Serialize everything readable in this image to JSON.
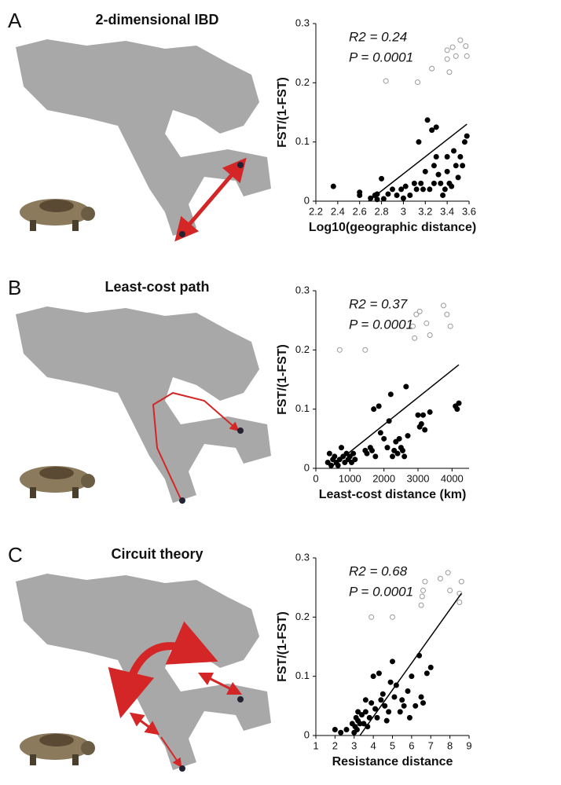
{
  "chart_data": [
    {
      "type": "scatter",
      "panel": "A",
      "title": "2-dimensional IBD",
      "xlabel": "Log10(geographic distance)",
      "ylabel": "FST/(1-FST)",
      "annotations": [
        "R2 = 0.24",
        "P = 0.0001"
      ],
      "xlim": [
        2.2,
        3.6
      ],
      "xticks": [
        2.2,
        2.4,
        2.6,
        2.8,
        3,
        3.2,
        3.4,
        3.6
      ],
      "ylim": [
        0,
        0.3
      ],
      "yticks": [
        0,
        0.1,
        0.2,
        0.3
      ],
      "series": [
        {
          "color": "#000000",
          "filled": true,
          "x": [
            2.36,
            2.6,
            2.6,
            2.7,
            2.74,
            2.76,
            2.76,
            2.8,
            2.82,
            2.86,
            2.9,
            2.94,
            2.98,
            3.0,
            3.02,
            3.06,
            3.1,
            3.12,
            3.14,
            3.16,
            3.2,
            3.22,
            3.24,
            3.26,
            3.28,
            3.28,
            3.3,
            3.32,
            3.34,
            3.36,
            3.38,
            3.4,
            3.4,
            3.42,
            3.44,
            3.46,
            3.48,
            3.5,
            3.52,
            3.54,
            3.56,
            3.58,
            3.3,
            3.18
          ],
          "values": [
            0.025,
            0.015,
            0.01,
            0.005,
            0.01,
            0.003,
            0.012,
            0.038,
            0.004,
            0.012,
            0.02,
            0.01,
            0.02,
            0.005,
            0.025,
            0.01,
            0.03,
            0.02,
            0.1,
            0.03,
            0.05,
            0.137,
            0.02,
            0.12,
            0.06,
            0.03,
            0.075,
            0.045,
            0.03,
            0.01,
            0.02,
            0.05,
            0.075,
            0.03,
            0.025,
            0.085,
            0.06,
            0.04,
            0.075,
            0.06,
            0.1,
            0.11,
            0.125,
            0.02
          ]
        },
        {
          "color": "#999999",
          "filled": false,
          "x": [
            2.84,
            3.13,
            3.26,
            3.4,
            3.45,
            3.42,
            3.4,
            3.52,
            3.48,
            3.57,
            3.58
          ],
          "values": [
            0.203,
            0.201,
            0.224,
            0.24,
            0.26,
            0.218,
            0.255,
            0.272,
            0.245,
            0.262,
            0.245
          ]
        }
      ],
      "fit_line": {
        "x": [
          2.68,
          3.58
        ],
        "y": [
          0,
          0.13
        ]
      }
    },
    {
      "type": "scatter",
      "panel": "B",
      "title": "Least-cost path",
      "xlabel": "Least-cost distance (km)",
      "ylabel": "FST/(1-FST)",
      "annotations": [
        "R2 = 0.37",
        "P = 0.0001"
      ],
      "xlim": [
        0,
        4500
      ],
      "xticks": [
        0,
        1000,
        2000,
        3000,
        4000
      ],
      "ylim": [
        0,
        0.3
      ],
      "yticks": [
        0,
        0.1,
        0.2,
        0.3
      ],
      "series": [
        {
          "color": "#000000",
          "filled": true,
          "x": [
            350,
            400,
            450,
            500,
            550,
            600,
            650,
            700,
            750,
            800,
            850,
            900,
            950,
            1000,
            1050,
            1100,
            1150,
            1450,
            1500,
            1600,
            1650,
            1700,
            1750,
            1850,
            1900,
            2000,
            2100,
            2150,
            2200,
            2250,
            2300,
            2350,
            2400,
            2450,
            2500,
            2550,
            2600,
            2650,
            2700,
            3000,
            3050,
            3100,
            3150,
            3200,
            3350,
            4100,
            4150,
            4200
          ],
          "values": [
            0.01,
            0.025,
            0.005,
            0.015,
            0.02,
            0.01,
            0.005,
            0.015,
            0.035,
            0.02,
            0.01,
            0.025,
            0.015,
            0.02,
            0.01,
            0.025,
            0.015,
            0.03,
            0.025,
            0.035,
            0.03,
            0.1,
            0.02,
            0.105,
            0.06,
            0.05,
            0.035,
            0.08,
            0.125,
            0.02,
            0.03,
            0.045,
            0.025,
            0.05,
            0.035,
            0.03,
            0.02,
            0.138,
            0.055,
            0.09,
            0.07,
            0.075,
            0.09,
            0.065,
            0.095,
            0.105,
            0.1,
            0.11
          ]
        },
        {
          "color": "#999999",
          "filled": false,
          "x": [
            700,
            1450,
            2850,
            2900,
            2950,
            3050,
            3250,
            3350,
            3750,
            3850,
            3950
          ],
          "values": [
            0.2,
            0.2,
            0.24,
            0.22,
            0.26,
            0.265,
            0.245,
            0.225,
            0.275,
            0.26,
            0.24
          ]
        }
      ],
      "fit_line": {
        "x": [
          400,
          4200
        ],
        "y": [
          0,
          0.175
        ]
      }
    },
    {
      "type": "scatter",
      "panel": "C",
      "title": "Circuit theory",
      "xlabel": "Resistance distance",
      "ylabel": "FST/(1-FST)",
      "annotations": [
        "R2 = 0.68",
        "P = 0.0001"
      ],
      "xlim": [
        1,
        9
      ],
      "xticks": [
        1,
        2,
        3,
        4,
        5,
        6,
        7,
        8,
        9
      ],
      "ylim": [
        0,
        0.3
      ],
      "yticks": [
        0,
        0.1,
        0.2,
        0.3
      ],
      "series": [
        {
          "color": "#000000",
          "filled": true,
          "x": [
            2.0,
            2.3,
            2.6,
            2.9,
            3.0,
            3.05,
            3.1,
            3.15,
            3.2,
            3.3,
            3.4,
            3.5,
            3.6,
            3.7,
            3.8,
            3.9,
            4.0,
            4.1,
            4.2,
            4.3,
            4.4,
            4.5,
            4.6,
            4.7,
            4.8,
            4.9,
            5.0,
            5.1,
            5.2,
            5.4,
            5.5,
            5.6,
            5.8,
            5.9,
            6.0,
            6.2,
            6.4,
            6.5,
            6.6,
            6.8,
            7.0,
            3.2,
            3.6
          ],
          "values": [
            0.01,
            0.005,
            0.01,
            0.02,
            0.005,
            0.015,
            0.03,
            0.01,
            0.025,
            0.02,
            0.035,
            0.02,
            0.04,
            0.015,
            0.03,
            0.055,
            0.1,
            0.045,
            0.03,
            0.105,
            0.06,
            0.07,
            0.05,
            0.025,
            0.04,
            0.09,
            0.125,
            0.065,
            0.085,
            0.04,
            0.06,
            0.05,
            0.075,
            0.03,
            0.1,
            0.05,
            0.135,
            0.065,
            0.055,
            0.105,
            0.115,
            0.04,
            0.06
          ]
        },
        {
          "color": "#999999",
          "filled": false,
          "x": [
            3.9,
            5.0,
            6.5,
            6.55,
            6.6,
            6.7,
            7.5,
            7.9,
            8.0,
            8.5,
            8.6,
            8.5
          ],
          "values": [
            0.2,
            0.2,
            0.22,
            0.235,
            0.245,
            0.26,
            0.265,
            0.275,
            0.245,
            0.225,
            0.26,
            0.24
          ]
        }
      ],
      "fit_line": {
        "x": [
          3.3,
          8.6
        ],
        "y": [
          0,
          0.24
        ]
      }
    }
  ]
}
